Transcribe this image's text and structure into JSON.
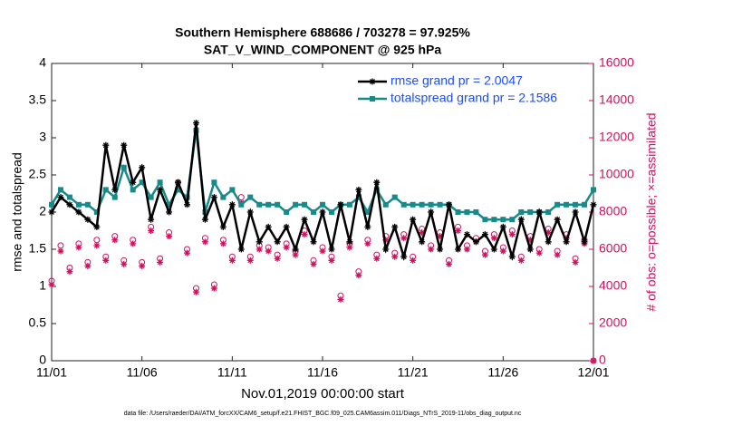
{
  "chart_data": {
    "type": "line",
    "title": "Southern Hemisphere 688686 / 703278 = 97.925%",
    "subtitle": "SAT_V_WIND_COMPONENT @ 925 hPa",
    "x_label": "Nov.01,2019 00:00:00 start",
    "y_label": "rmse and totalspread",
    "y2_label": "# of obs: o=possible; ×=assimilated",
    "footnote": "data file: /Users/raeder/DAI/ATM_forcXX/CAM6_setup/f.e21.FHIST_BGC.f09_025.CAM6assim.011/Diags_NTrS_2019-11/obs_diag_output.nc",
    "x": [
      0,
      0.5,
      1,
      1.5,
      2,
      2.5,
      3,
      3.5,
      4,
      4.5,
      5,
      5.5,
      6,
      6.5,
      7,
      7.5,
      8,
      8.5,
      9,
      9.5,
      10,
      10.5,
      11,
      11.5,
      12,
      12.5,
      13,
      13.5,
      14,
      14.5,
      15,
      15.5,
      16,
      16.5,
      17,
      17.5,
      18,
      18.5,
      19,
      19.5,
      20,
      20.5,
      21,
      21.5,
      22,
      22.5,
      23,
      23.5,
      24,
      24.5,
      25,
      25.5,
      26,
      26.5,
      27,
      27.5,
      28,
      28.5,
      29,
      29.5,
      30
    ],
    "xlim": [
      0,
      30
    ],
    "xticks": [
      {
        "value": 0,
        "label": "11/01"
      },
      {
        "value": 5,
        "label": "11/06"
      },
      {
        "value": 10,
        "label": "11/11"
      },
      {
        "value": 15,
        "label": "11/16"
      },
      {
        "value": 20,
        "label": "11/21"
      },
      {
        "value": 25,
        "label": "11/26"
      },
      {
        "value": 30,
        "label": "12/01"
      }
    ],
    "ylim": [
      0,
      4
    ],
    "yticks": [
      0,
      0.5,
      1,
      1.5,
      2,
      2.5,
      3,
      3.5,
      4
    ],
    "y2lim": [
      0,
      16000
    ],
    "y2ticks": [
      0,
      2000,
      4000,
      6000,
      8000,
      10000,
      12000,
      14000,
      16000
    ],
    "y2_color": "#d01060",
    "legend": "top-right",
    "legend_text_color": "#1a4cff",
    "series": [
      {
        "name": "rmse grand pr = 2.0047",
        "color": "#000000",
        "marker": "asterisk",
        "line": true,
        "values": [
          2.0,
          2.2,
          2.1,
          2.0,
          1.9,
          1.8,
          2.9,
          2.3,
          2.9,
          2.4,
          2.6,
          1.9,
          2.3,
          2.0,
          2.4,
          2.1,
          3.2,
          1.9,
          2.2,
          1.8,
          2.1,
          1.5,
          2.0,
          1.6,
          1.8,
          1.6,
          1.8,
          1.5,
          1.9,
          1.6,
          2.0,
          1.5,
          2.1,
          1.6,
          2.3,
          1.8,
          2.4,
          1.5,
          1.8,
          1.4,
          1.9,
          1.6,
          2.0,
          1.5,
          2.1,
          1.5,
          1.7,
          1.6,
          1.7,
          1.5,
          1.8,
          1.4,
          1.9,
          1.5,
          2.0,
          1.6,
          1.9,
          1.6,
          2.0,
          1.6,
          2.1
        ]
      },
      {
        "name": "totalspread grand pr = 2.1586",
        "color": "#178a8a",
        "marker": "square",
        "line": true,
        "values": [
          2.1,
          2.3,
          2.2,
          2.1,
          2.1,
          2.0,
          2.3,
          2.2,
          2.6,
          2.3,
          2.4,
          2.2,
          2.4,
          2.1,
          2.3,
          2.2,
          3.1,
          2.0,
          2.4,
          2.2,
          2.3,
          2.1,
          2.2,
          2.1,
          2.1,
          2.1,
          2.0,
          2.1,
          2.1,
          2.0,
          2.1,
          2.0,
          2.1,
          2.1,
          2.2,
          2.0,
          2.3,
          2.1,
          2.2,
          2.1,
          2.1,
          2.1,
          2.1,
          2.1,
          2.1,
          2.0,
          2.0,
          2.0,
          1.9,
          1.9,
          1.9,
          1.9,
          2.0,
          2.0,
          2.0,
          2.0,
          2.1,
          2.1,
          2.1,
          2.1,
          2.3
        ]
      },
      {
        "color": "#d01060",
        "marker": "circle",
        "line": false,
        "axis": "y2",
        "values": [
          4300,
          6200,
          5000,
          6300,
          5300,
          6500,
          5600,
          6700,
          5400,
          6500,
          5300,
          7200,
          5500,
          6900,
          9600,
          6000,
          3900,
          6600,
          4100,
          6500,
          5600,
          8800,
          5600,
          6200,
          6100,
          5700,
          6300,
          5900,
          7000,
          5400,
          6100,
          5600,
          3500,
          6300,
          4800,
          6500,
          5700,
          6700,
          5800,
          6800,
          5600,
          7100,
          6200,
          6900,
          5400,
          7200,
          6200,
          6600,
          5900,
          6800,
          6100,
          7000,
          5600,
          6700,
          6000,
          7100,
          5900,
          6800,
          5500,
          6500,
          0
        ]
      },
      {
        "color": "#d01060",
        "marker": "asterisk",
        "line": false,
        "axis": "y2",
        "values": [
          4100,
          5900,
          4800,
          6100,
          5100,
          6200,
          5400,
          6500,
          5200,
          6300,
          5100,
          7000,
          5300,
          6700,
          9300,
          5800,
          3700,
          6400,
          3900,
          6300,
          5400,
          8500,
          5400,
          6000,
          5900,
          5500,
          6100,
          5700,
          6800,
          5200,
          5900,
          5400,
          3300,
          6100,
          4600,
          6300,
          5500,
          6500,
          5600,
          6600,
          5400,
          6900,
          6000,
          6700,
          5200,
          7000,
          6000,
          6400,
          5700,
          6600,
          5900,
          6800,
          5400,
          6500,
          5800,
          6900,
          5700,
          6600,
          5300,
          6300,
          0
        ]
      }
    ]
  }
}
